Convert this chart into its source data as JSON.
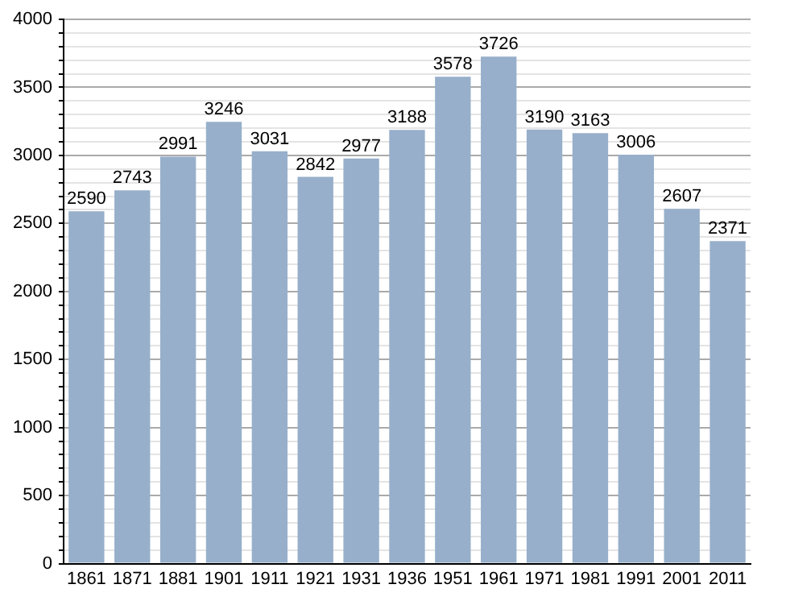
{
  "chart_data": {
    "type": "bar",
    "categories": [
      "1861",
      "1871",
      "1881",
      "1901",
      "1911",
      "1921",
      "1931",
      "1936",
      "1951",
      "1961",
      "1971",
      "1981",
      "1991",
      "2001",
      "2011"
    ],
    "values": [
      2590,
      2743,
      2991,
      3246,
      3031,
      2842,
      2977,
      3188,
      3578,
      3726,
      3190,
      3163,
      3006,
      2607,
      2371
    ],
    "color": "#97afcb",
    "ylim": [
      0,
      4000
    ],
    "yticks": [
      0,
      {
        "value": 100,
        "label": null
      },
      {
        "value": 200,
        "label": null
      },
      {
        "value": 300,
        "label": null
      },
      {
        "value": 400,
        "label": null
      },
      500,
      {
        "value": 600,
        "label": null
      },
      {
        "value": 700,
        "label": null
      },
      {
        "value": 800,
        "label": null
      },
      {
        "value": 900,
        "label": null
      },
      1000,
      {
        "value": 1100,
        "label": null
      },
      {
        "value": 1200,
        "label": null
      },
      {
        "value": 1300,
        "label": null
      },
      {
        "value": 1400,
        "label": null
      },
      1500,
      {
        "value": 1600,
        "label": null
      },
      {
        "value": 1700,
        "label": null
      },
      {
        "value": 1800,
        "label": null
      },
      {
        "value": 1900,
        "label": null
      },
      2000,
      {
        "value": 2100,
        "label": null
      },
      {
        "value": 2200,
        "label": null
      },
      {
        "value": 2300,
        "label": null
      },
      {
        "value": 2400,
        "label": null
      },
      2500,
      {
        "value": 2600,
        "label": null
      },
      {
        "value": 2700,
        "label": null
      },
      {
        "value": 2800,
        "label": null
      },
      {
        "value": 2900,
        "label": null
      },
      3000,
      {
        "value": 3100,
        "label": null
      },
      {
        "value": 3200,
        "label": null
      },
      {
        "value": 3300,
        "label": null
      },
      {
        "value": 3400,
        "label": null
      },
      3500,
      {
        "value": 3600,
        "label": null
      },
      {
        "value": 3700,
        "label": null
      },
      {
        "value": 3800,
        "label": null
      },
      {
        "value": 3900,
        "label": null
      },
      4000
    ],
    "grid": true,
    "data_labels": true
  }
}
